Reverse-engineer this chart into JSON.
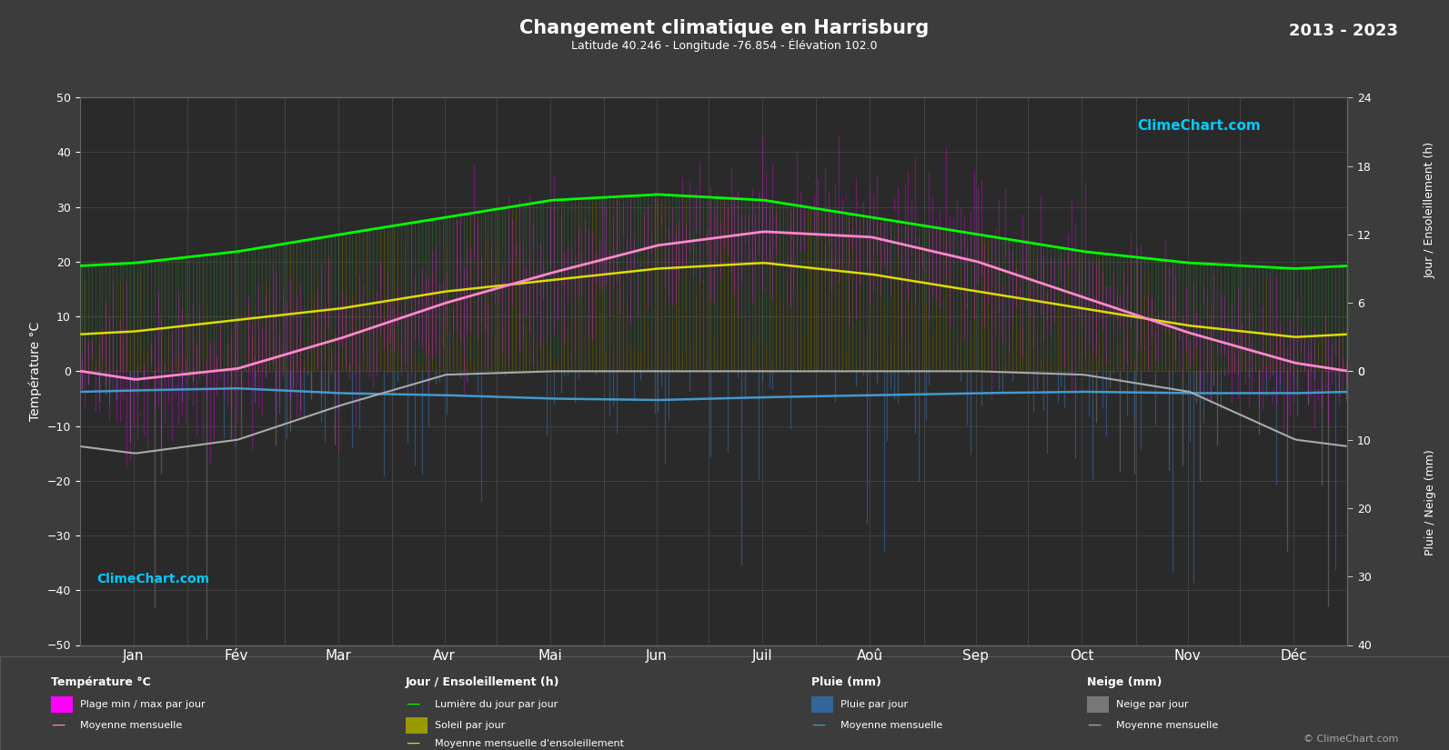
{
  "title": "Changement climatique en Harrisburg",
  "subtitle": "Latitude 40.246 - Longitude -76.854 - Élévation 102.0",
  "year_range": "2013 - 2023",
  "months": [
    "Jan",
    "Fév",
    "Mar",
    "Avr",
    "Mai",
    "Jun",
    "Juil",
    "Aoû",
    "Sep",
    "Oct",
    "Nov",
    "Déc"
  ],
  "temp_ylim": [
    -50,
    50
  ],
  "background_color": "#3c3c3c",
  "plot_bg_color": "#2a2a2a",
  "grid_color": "#505050",
  "temp_mean_monthly": [
    -1.5,
    0.5,
    6.0,
    12.5,
    18.0,
    23.0,
    25.5,
    24.5,
    20.0,
    13.5,
    7.0,
    1.5
  ],
  "temp_min_mean_monthly": [
    -7.0,
    -5.5,
    0.0,
    5.5,
    11.0,
    16.5,
    19.5,
    18.5,
    13.5,
    6.5,
    1.5,
    -4.5
  ],
  "temp_max_mean_monthly": [
    4.0,
    6.0,
    12.5,
    19.5,
    25.0,
    29.5,
    31.5,
    30.5,
    26.5,
    20.5,
    12.5,
    7.0
  ],
  "daylight_monthly": [
    9.5,
    10.5,
    12.0,
    13.5,
    15.0,
    15.5,
    15.0,
    13.5,
    12.0,
    10.5,
    9.5,
    9.0
  ],
  "sunshine_monthly": [
    3.5,
    4.5,
    5.5,
    7.0,
    8.0,
    9.0,
    9.5,
    8.5,
    7.0,
    5.5,
    4.0,
    3.0
  ],
  "rain_monthly_mean_mm": [
    2.8,
    2.5,
    3.2,
    3.5,
    4.0,
    4.2,
    3.8,
    3.5,
    3.2,
    3.0,
    3.2,
    3.2
  ],
  "snow_monthly_mean_mm": [
    12.0,
    10.0,
    5.0,
    0.5,
    0.0,
    0.0,
    0.0,
    0.0,
    0.0,
    0.5,
    3.0,
    10.0
  ],
  "sun_scale": 2.083,
  "precip_scale": 1.25,
  "temp_color": "#ff00ff",
  "temp_mean_color": "#ff88cc",
  "daylight_color": "#00ff00",
  "sunshine_bar_color": "#666600",
  "sunshine_top_color": "#33aa33",
  "sunshine_mean_color": "#dddd00",
  "rain_bar_color": "#336699",
  "rain_mean_color": "#4499cc",
  "snow_bar_color": "#777777",
  "snow_mean_color": "#aaaaaa",
  "legend_title_temp": "Température °C",
  "legend_title_sun": "Jour / Ensoleillement (h)",
  "legend_title_rain": "Pluie (mm)",
  "legend_title_snow": "Neige (mm)",
  "legend_temp_range": "Plage min / max par jour",
  "legend_temp_mean": "Moyenne mensuelle",
  "legend_daylight": "Lumière du jour par jour",
  "legend_sunshine": "Soleil par jour",
  "legend_sunshine_mean": "Moyenne mensuelle d'ensoleillement",
  "legend_rain": "Pluie par jour",
  "legend_rain_mean": "Moyenne mensuelle",
  "legend_snow": "Neige par jour",
  "legend_snow_mean": "Moyenne mensuelle",
  "right_label_top": "Jour / Ensoleillement (h)",
  "right_label_bottom": "Pluie / Neige (mm)",
  "left_label": "Température °C",
  "copyright": "© ClimeChart.com"
}
